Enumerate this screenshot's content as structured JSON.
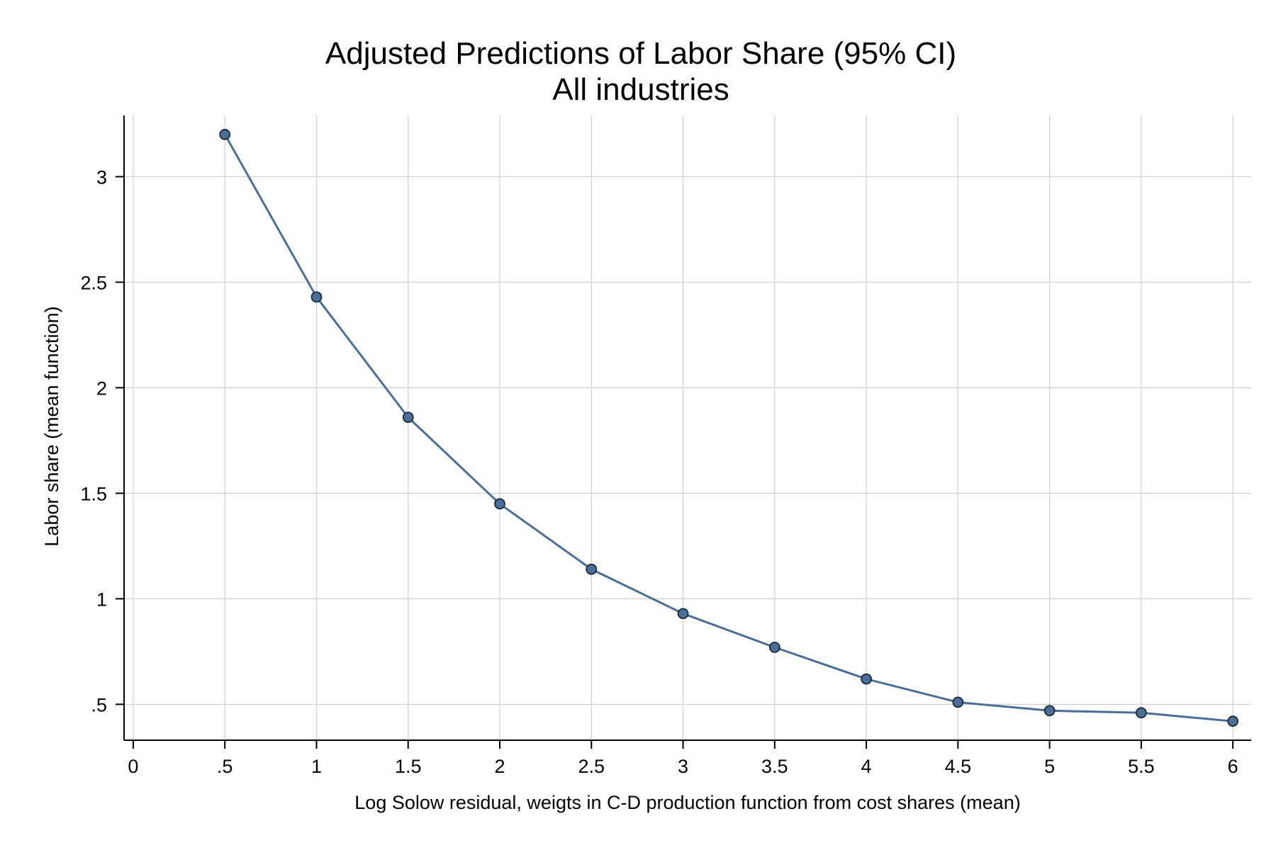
{
  "chart_data": {
    "type": "line",
    "title": "Adjusted Predictions of Labor Share (95% CI)",
    "subtitle": "All industries",
    "xlabel": "Log Solow residual, weigts in C-D production function from cost shares (mean)",
    "ylabel": "Labor share (mean function)",
    "xlim": [
      -0.05,
      6.1
    ],
    "ylim": [
      0.33,
      3.29
    ],
    "x_ticks": [
      0,
      0.5,
      1,
      1.5,
      2,
      2.5,
      3,
      3.5,
      4,
      4.5,
      5,
      5.5,
      6
    ],
    "x_tick_labels": [
      "0",
      ".5",
      "1",
      "1.5",
      "2",
      "2.5",
      "3",
      "3.5",
      "4",
      "4.5",
      "5",
      "5.5",
      "6"
    ],
    "y_ticks": [
      0.5,
      1,
      1.5,
      2,
      2.5,
      3
    ],
    "y_tick_labels": [
      ".5",
      "1",
      "1.5",
      "2",
      "2.5",
      "3"
    ],
    "grid": true,
    "series": [
      {
        "color": "#4a6e96",
        "marker_edge_color": "#1a2a3a",
        "x": [
          0.5,
          1,
          1.5,
          2,
          2.5,
          3,
          3.5,
          4,
          4.5,
          5,
          5.5,
          6
        ],
        "y": [
          3.2,
          2.43,
          1.86,
          1.45,
          1.14,
          0.93,
          0.77,
          0.62,
          0.51,
          0.47,
          0.46,
          0.42
        ]
      }
    ],
    "colors": {
      "grid": "#d0d0d0",
      "axis": "#000000",
      "background": "#ffffff"
    }
  }
}
